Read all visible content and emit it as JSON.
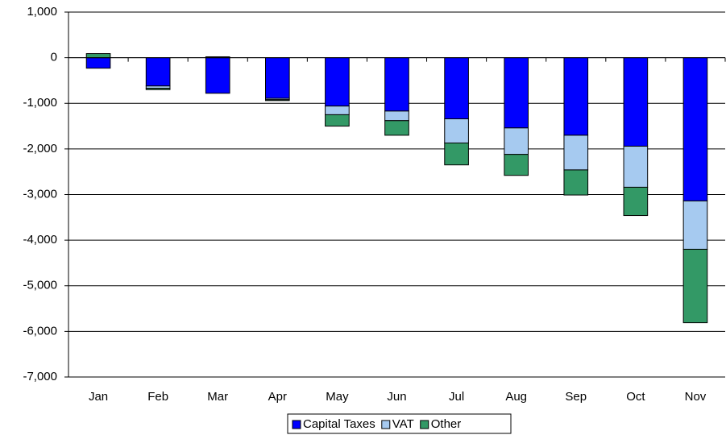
{
  "chart_data": {
    "type": "stacked_bar",
    "categories": [
      "Jan",
      "Feb",
      "Mar",
      "Apr",
      "May",
      "Jun",
      "Jul",
      "Aug",
      "Sep",
      "Oct",
      "Nov"
    ],
    "series": [
      {
        "name": "Capital Taxes",
        "color": "#0000ff",
        "values": [
          -230,
          -620,
          -780,
          -890,
          -1060,
          -1170,
          -1340,
          -1540,
          -1700,
          -1940,
          -3140
        ]
      },
      {
        "name": "VAT",
        "color": "#a6caf0",
        "values": [
          0,
          -50,
          0,
          -30,
          -190,
          -210,
          -530,
          -580,
          -760,
          -900,
          -1060
        ]
      },
      {
        "name": "Other",
        "color": "#339966",
        "values": [
          90,
          -30,
          20,
          -20,
          -250,
          -320,
          -480,
          -460,
          -550,
          -620,
          -1610
        ]
      }
    ],
    "ylim": [
      -7000,
      1000
    ],
    "yticks": [
      {
        "value": -7000,
        "label": "-7,000"
      },
      {
        "value": -6000,
        "label": "-6,000"
      },
      {
        "value": -5000,
        "label": "-5,000"
      },
      {
        "value": -4000,
        "label": "-4,000"
      },
      {
        "value": -3000,
        "label": "-3,000"
      },
      {
        "value": -2000,
        "label": "-2,000"
      },
      {
        "value": -1000,
        "label": "-1,000"
      },
      0,
      {
        "value": 1000,
        "label": "1,000"
      }
    ],
    "grid": true,
    "legend": "bottom"
  }
}
